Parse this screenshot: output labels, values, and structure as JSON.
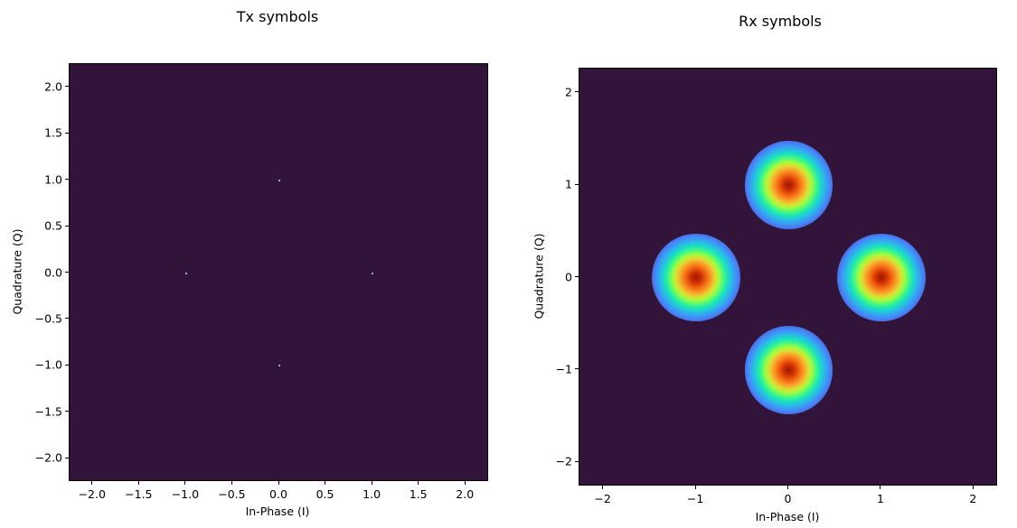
{
  "figure": {
    "left_title": "Tx symbols",
    "right_title": "Rx symbols"
  },
  "chart_data": [
    {
      "type": "heatmap",
      "title": "Tx symbols",
      "xlabel": "In-Phase (I)",
      "ylabel": "Quadrature (Q)",
      "xlim": [
        -2.25,
        2.25
      ],
      "ylim": [
        -2.25,
        2.25
      ],
      "xticks": [
        "−2.0",
        "−1.5",
        "−1.0",
        "−0.5",
        "0.0",
        "0.5",
        "1.0",
        "1.5",
        "2.0"
      ],
      "xtick_values": [
        -2.0,
        -1.5,
        -1.0,
        -0.5,
        0.0,
        0.5,
        1.0,
        1.5,
        2.0
      ],
      "yticks": [
        "2.0",
        "1.5",
        "1.0",
        "0.5",
        "0.0",
        "−0.5",
        "−1.0",
        "−1.5",
        "−2.0"
      ],
      "ytick_values": [
        2.0,
        1.5,
        1.0,
        0.5,
        0.0,
        -0.5,
        -1.0,
        -1.5,
        -2.0
      ],
      "colormap": "turbo",
      "background_color": "#32143a",
      "grid": false,
      "points": [
        {
          "i": 0.0,
          "q": 1.0
        },
        {
          "i": -1.0,
          "q": 0.0
        },
        {
          "i": 1.0,
          "q": 0.0
        },
        {
          "i": 0.0,
          "q": -1.0
        }
      ]
    },
    {
      "type": "heatmap",
      "title": "Rx symbols",
      "xlabel": "In-Phase (I)",
      "ylabel": "Quadrature (Q)",
      "xlim": [
        -2.26,
        2.26
      ],
      "ylim": [
        -2.26,
        2.26
      ],
      "xticks": [
        "−2",
        "−1",
        "0",
        "1",
        "2"
      ],
      "xtick_values": [
        -2,
        -1,
        0,
        1,
        2
      ],
      "yticks": [
        "2",
        "1",
        "0",
        "−1",
        "−2"
      ],
      "ytick_values": [
        2,
        1,
        0,
        -1,
        -2
      ],
      "colormap": "turbo",
      "background_color": "#32143a",
      "grid": false,
      "clusters": [
        {
          "i": 0.0,
          "q": 1.0,
          "spread_radius": 0.5
        },
        {
          "i": -1.0,
          "q": 0.0,
          "spread_radius": 0.5
        },
        {
          "i": 1.0,
          "q": 0.0,
          "spread_radius": 0.5
        },
        {
          "i": 0.0,
          "q": -1.0,
          "spread_radius": 0.5
        }
      ]
    }
  ]
}
